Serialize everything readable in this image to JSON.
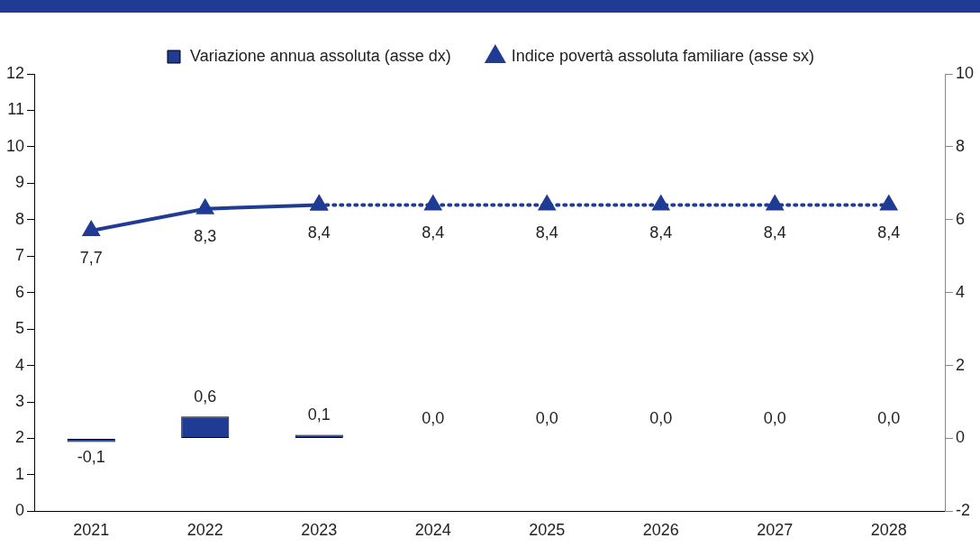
{
  "chart_data": {
    "type": "bar",
    "categories": [
      "2021",
      "2022",
      "2023",
      "2024",
      "2025",
      "2026",
      "2027",
      "2028"
    ],
    "series": [
      {
        "axis": "y2",
        "name": "Variazione annua assoluta (asse dx)",
        "color": "#1f3b94",
        "values": [
          -0.1,
          0.6,
          0.1,
          0.0,
          0.0,
          0.0,
          0.0,
          0.0
        ],
        "value_labels": [
          "-0,1",
          "0,6",
          "0,1",
          "0,0",
          "0,0",
          "0,0",
          "0,0",
          "0,0"
        ]
      },
      {
        "type": "line",
        "axis": "y",
        "name": "Indice povertà assoluta familiare (asse sx)",
        "color": "#1f3b94",
        "marker": "triangle",
        "line_style": "solid",
        "values": [
          7.7,
          8.3,
          8.4,
          null,
          null,
          null,
          null,
          null
        ],
        "value_labels": [
          "7,7",
          "8,3",
          "8,4",
          null,
          null,
          null,
          null,
          null
        ]
      },
      {
        "type": "line",
        "axis": "y",
        "color": "#1f3b94",
        "marker": "triangle",
        "line_style": "dotted",
        "values": [
          null,
          null,
          8.4,
          8.4,
          8.4,
          8.4,
          8.4,
          8.4
        ],
        "value_labels": [
          null,
          null,
          null,
          "8,4",
          "8,4",
          "8,4",
          "8,4",
          "8,4"
        ]
      }
    ],
    "ylim": [
      0,
      12
    ],
    "yticks": [
      0,
      1,
      2,
      3,
      4,
      5,
      6,
      7,
      8,
      9,
      10,
      11,
      12
    ],
    "y2lim": [
      -2,
      10
    ],
    "y2ticks": [
      -2,
      0,
      2,
      4,
      6,
      8,
      10
    ],
    "grid": false,
    "legend": "top"
  }
}
